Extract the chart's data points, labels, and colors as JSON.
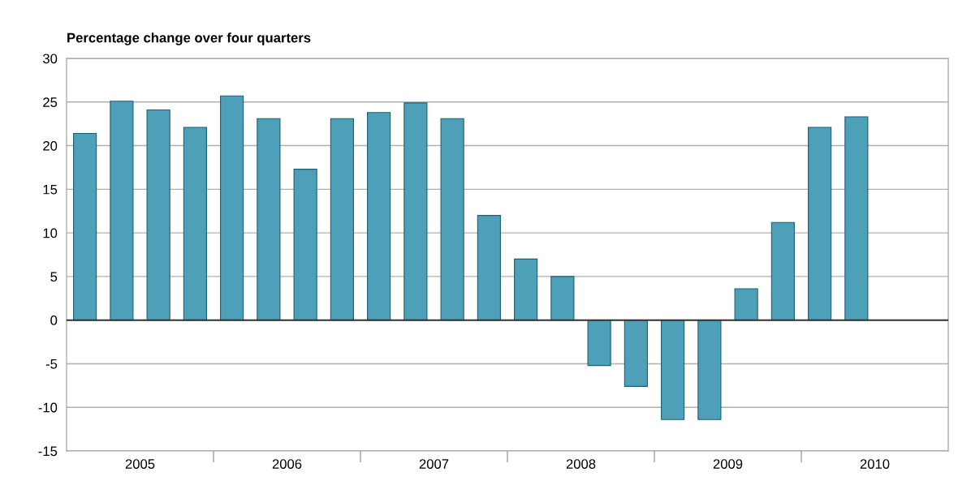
{
  "chart_data": {
    "type": "bar",
    "title": "Percentage change over four quarters",
    "x": [
      2005.125,
      2005.375,
      2005.625,
      2005.875,
      2006.125,
      2006.375,
      2006.625,
      2006.875,
      2007.125,
      2007.375,
      2007.625,
      2007.875,
      2008.125,
      2008.375,
      2008.625,
      2008.875,
      2009.125,
      2009.375,
      2009.625,
      2009.875,
      2010.125,
      2010.375
    ],
    "values": [
      21.4,
      25.1,
      24.1,
      22.1,
      25.7,
      23.1,
      17.3,
      23.1,
      23.8,
      24.9,
      23.1,
      12.0,
      7.0,
      5.0,
      -5.2,
      -7.6,
      -11.4,
      -11.4,
      3.6,
      11.2,
      22.1,
      23.3
    ],
    "color": "#4e9fb8",
    "xlim": [
      2005,
      2011
    ],
    "xticks": [
      {
        "value": 2005.5,
        "label": "2005"
      },
      {
        "value": 2006,
        "label": null
      },
      {
        "value": 2006.5,
        "label": "2006"
      },
      {
        "value": 2007,
        "label": null
      },
      {
        "value": 2007.5,
        "label": "2007"
      },
      {
        "value": 2008,
        "label": null
      },
      {
        "value": 2008.5,
        "label": "2008"
      },
      {
        "value": 2009,
        "label": null
      },
      {
        "value": 2009.5,
        "label": "2009"
      },
      {
        "value": 2010,
        "label": null
      },
      {
        "value": 2010.5,
        "label": "2010"
      }
    ],
    "ylim": [
      -15,
      30
    ],
    "yticks": [
      -15,
      -10,
      -5,
      0,
      5,
      10,
      15,
      20,
      25,
      30
    ],
    "ref_lines": [
      {
        "axis": "y",
        "value": 0,
        "color": "#333333"
      }
    ],
    "grid": "y",
    "legend": false
  }
}
